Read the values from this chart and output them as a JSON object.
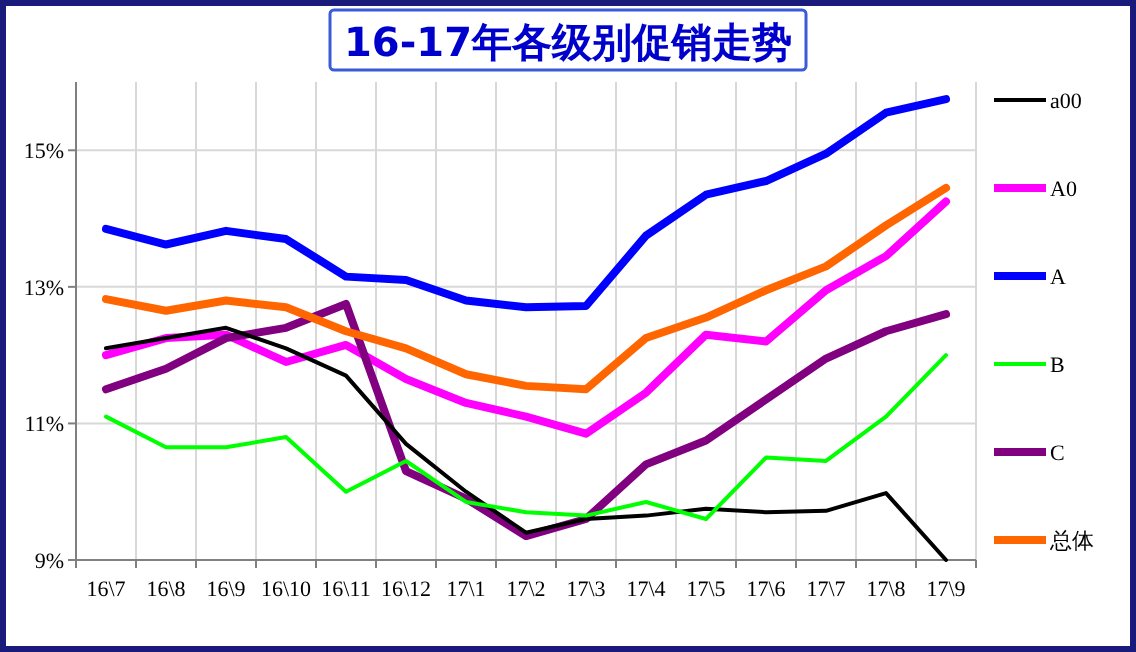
{
  "chart_data": {
    "type": "line",
    "title": "16-17年各级别促销走势",
    "categories": [
      "16\\7",
      "16\\8",
      "16\\9",
      "16\\10",
      "16\\11",
      "16\\12",
      "17\\1",
      "17\\2",
      "17\\3",
      "17\\4",
      "17\\5",
      "17\\6",
      "17\\7",
      "17\\8",
      "17\\9"
    ],
    "ylim": [
      9,
      16
    ],
    "yticks": [
      {
        "value": 9,
        "label": "9%"
      },
      {
        "value": 11,
        "label": "11%"
      },
      {
        "value": 13,
        "label": "13%"
      },
      {
        "value": 15,
        "label": "15%"
      }
    ],
    "grid": true,
    "legend": "right",
    "marker": "none",
    "line_style": "solid",
    "series": [
      {
        "name": "a00",
        "color": "#000000",
        "values": [
          12.1,
          12.25,
          12.4,
          12.1,
          11.7,
          10.7,
          10.0,
          9.4,
          9.6,
          9.65,
          9.75,
          9.7,
          9.72,
          9.98,
          9.0
        ]
      },
      {
        "name": "A0",
        "color": "#ff00ff",
        "values": [
          12.0,
          12.25,
          12.3,
          11.9,
          12.15,
          11.65,
          11.3,
          11.1,
          10.85,
          11.45,
          12.3,
          12.2,
          12.95,
          13.45,
          14.25
        ]
      },
      {
        "name": "A",
        "color": "#0000ff",
        "values": [
          13.85,
          13.62,
          13.82,
          13.7,
          13.15,
          13.1,
          12.8,
          12.7,
          12.72,
          13.75,
          14.35,
          14.55,
          14.95,
          15.55,
          15.75
        ]
      },
      {
        "name": "B",
        "color": "#00ff00",
        "values": [
          11.1,
          10.65,
          10.65,
          10.8,
          10.0,
          10.45,
          9.85,
          9.7,
          9.65,
          9.85,
          9.6,
          10.5,
          10.45,
          11.1,
          12.0
        ]
      },
      {
        "name": "C",
        "color": "#800080",
        "values": [
          11.5,
          11.8,
          12.25,
          12.4,
          12.75,
          10.3,
          9.9,
          9.35,
          9.6,
          10.4,
          10.75,
          11.35,
          11.95,
          12.35,
          12.6
        ]
      },
      {
        "name": "总体",
        "color": "#ff6600",
        "values": [
          12.82,
          12.65,
          12.8,
          12.7,
          12.35,
          12.1,
          11.72,
          11.55,
          11.5,
          12.25,
          12.55,
          12.95,
          13.3,
          13.9,
          14.45
        ]
      }
    ]
  }
}
